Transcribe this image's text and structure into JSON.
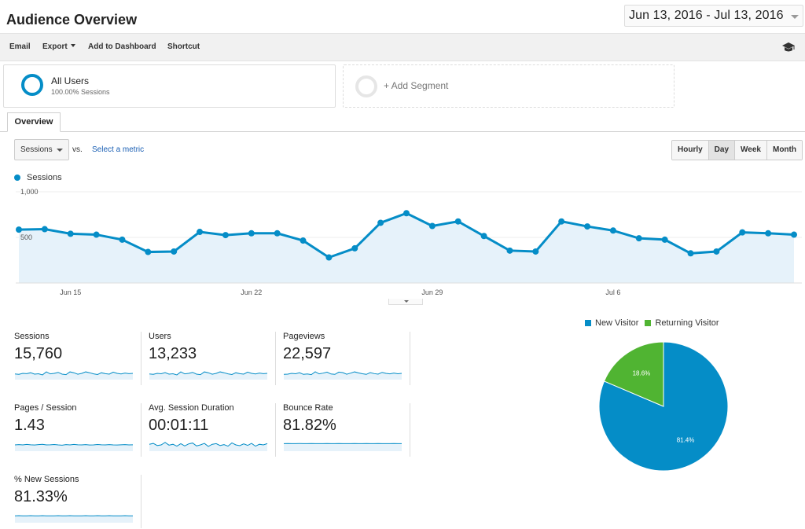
{
  "header": {
    "title": "Audience Overview",
    "date_range": "Jun 13, 2016 - Jul 13, 2016"
  },
  "toolbar": {
    "email": "Email",
    "export": "Export",
    "add_to_dashboard": "Add to Dashboard",
    "shortcut": "Shortcut",
    "icon": "graduation-cap-icon"
  },
  "segments": {
    "all_users": {
      "name": "All Users",
      "sub": "100.00% Sessions"
    },
    "add_segment": "+ Add Segment"
  },
  "tabs": {
    "overview": "Overview"
  },
  "controls": {
    "metric": "Sessions",
    "vs": "vs.",
    "select_metric": "Select a metric",
    "time_buttons": [
      "Hourly",
      "Day",
      "Week",
      "Month"
    ],
    "active_time": "Day"
  },
  "colors": {
    "primary": "#058dc7",
    "secondary": "#50b432",
    "area_fill": "#e6f2fa"
  },
  "chart_data": [
    {
      "type": "area",
      "series": [
        {
          "name": "Sessions",
          "values": [
            585,
            590,
            540,
            530,
            475,
            340,
            345,
            560,
            525,
            545,
            545,
            465,
            280,
            380,
            660,
            765,
            625,
            675,
            515,
            355,
            345,
            675,
            620,
            575,
            490,
            475,
            325,
            345,
            555,
            545,
            530
          ]
        }
      ],
      "x": [
        "Jun 13",
        "Jun 14",
        "Jun 15",
        "Jun 16",
        "Jun 17",
        "Jun 18",
        "Jun 19",
        "Jun 20",
        "Jun 21",
        "Jun 22",
        "Jun 23",
        "Jun 24",
        "Jun 25",
        "Jun 26",
        "Jun 27",
        "Jun 28",
        "Jun 29",
        "Jun 30",
        "Jul 1",
        "Jul 2",
        "Jul 3",
        "Jul 4",
        "Jul 5",
        "Jul 6",
        "Jul 7",
        "Jul 8",
        "Jul 9",
        "Jul 10",
        "Jul 11",
        "Jul 12",
        "Jul 13"
      ],
      "x_tick_labels": [
        {
          "label": "Jun 15",
          "index": 2
        },
        {
          "label": "Jun 22",
          "index": 9
        },
        {
          "label": "Jun 29",
          "index": 16
        },
        {
          "label": "Jul 6",
          "index": 23
        }
      ],
      "y_tick_labels": [
        "1,000",
        "500"
      ],
      "ylim": [
        0,
        1000
      ],
      "grid": true,
      "legend": "top-left"
    },
    {
      "type": "pie",
      "categories": [
        "New Visitor",
        "Returning Visitor"
      ],
      "values": [
        81.4,
        18.6
      ],
      "labels": [
        "81.4%",
        "18.6%"
      ],
      "colors": [
        "#058dc7",
        "#50b432"
      ],
      "legend": "top"
    }
  ],
  "metrics": [
    {
      "label": "Sessions",
      "value": "15,760",
      "spark": [
        0.45,
        0.42,
        0.5,
        0.48,
        0.55,
        0.44,
        0.47,
        0.38,
        0.62,
        0.46,
        0.5,
        0.58,
        0.44,
        0.4,
        0.62,
        0.55,
        0.43,
        0.5,
        0.62,
        0.55,
        0.46,
        0.41,
        0.55,
        0.48,
        0.44,
        0.6,
        0.5,
        0.45,
        0.52,
        0.48,
        0.5
      ]
    },
    {
      "label": "Users",
      "value": "13,233",
      "spark": [
        0.45,
        0.42,
        0.5,
        0.47,
        0.56,
        0.44,
        0.47,
        0.38,
        0.62,
        0.46,
        0.5,
        0.58,
        0.44,
        0.4,
        0.62,
        0.55,
        0.43,
        0.5,
        0.62,
        0.55,
        0.46,
        0.41,
        0.55,
        0.48,
        0.44,
        0.6,
        0.5,
        0.45,
        0.52,
        0.48,
        0.5
      ]
    },
    {
      "label": "Pageviews",
      "value": "22,597",
      "spark": [
        0.42,
        0.44,
        0.5,
        0.47,
        0.55,
        0.42,
        0.45,
        0.4,
        0.63,
        0.46,
        0.52,
        0.6,
        0.45,
        0.42,
        0.6,
        0.56,
        0.43,
        0.52,
        0.62,
        0.54,
        0.47,
        0.42,
        0.56,
        0.48,
        0.44,
        0.58,
        0.5,
        0.46,
        0.52,
        0.47,
        0.5
      ]
    },
    {
      "label": "Pages / Session",
      "value": "1.43",
      "spark": [
        0.5,
        0.52,
        0.5,
        0.54,
        0.51,
        0.49,
        0.52,
        0.55,
        0.5,
        0.51,
        0.53,
        0.5,
        0.48,
        0.52,
        0.5,
        0.54,
        0.51,
        0.5,
        0.52,
        0.49,
        0.5,
        0.53,
        0.51,
        0.5,
        0.52,
        0.5,
        0.49,
        0.51,
        0.52,
        0.5,
        0.51
      ]
    },
    {
      "label": "Avg. Session Duration",
      "value": "00:01:11",
      "spark": [
        0.55,
        0.62,
        0.45,
        0.5,
        0.7,
        0.48,
        0.55,
        0.4,
        0.6,
        0.42,
        0.58,
        0.65,
        0.42,
        0.5,
        0.62,
        0.38,
        0.55,
        0.6,
        0.45,
        0.52,
        0.4,
        0.66,
        0.5,
        0.44,
        0.58,
        0.46,
        0.62,
        0.4,
        0.55,
        0.5,
        0.6
      ]
    },
    {
      "label": "Bounce Rate",
      "value": "81.82%",
      "spark": [
        0.6,
        0.61,
        0.6,
        0.6,
        0.61,
        0.6,
        0.6,
        0.61,
        0.6,
        0.6,
        0.6,
        0.61,
        0.6,
        0.6,
        0.61,
        0.6,
        0.6,
        0.6,
        0.61,
        0.6,
        0.6,
        0.61,
        0.6,
        0.6,
        0.61,
        0.6,
        0.6,
        0.6,
        0.61,
        0.6,
        0.6
      ]
    },
    {
      "label": "% New Sessions",
      "value": "81.33%",
      "spark": [
        0.55,
        0.56,
        0.55,
        0.55,
        0.56,
        0.55,
        0.55,
        0.56,
        0.55,
        0.55,
        0.55,
        0.56,
        0.55,
        0.55,
        0.56,
        0.55,
        0.55,
        0.55,
        0.56,
        0.55,
        0.55,
        0.56,
        0.55,
        0.55,
        0.56,
        0.55,
        0.55,
        0.55,
        0.56,
        0.55,
        0.55
      ]
    }
  ]
}
